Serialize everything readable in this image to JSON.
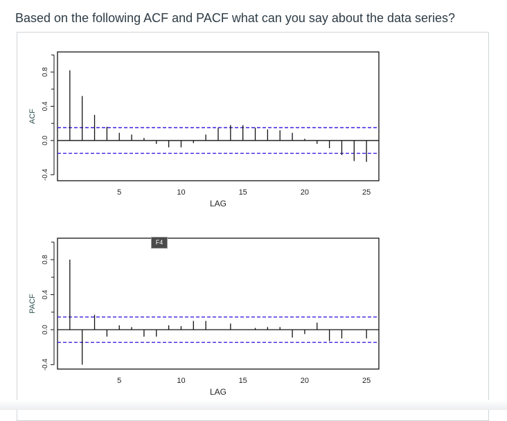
{
  "question": "Based on the following ACF and PACF what can you say about the data series?",
  "tooltip": "F4",
  "chart_data": [
    {
      "type": "bar",
      "ylabel": "ACF",
      "xlabel": "LAG",
      "x": [
        1,
        2,
        3,
        4,
        5,
        6,
        7,
        8,
        9,
        10,
        11,
        12,
        13,
        14,
        15,
        16,
        17,
        18,
        19,
        20,
        21,
        22,
        23,
        24,
        25
      ],
      "values": [
        0.82,
        0.52,
        0.3,
        0.16,
        0.09,
        0.07,
        0.03,
        -0.04,
        -0.08,
        -0.08,
        -0.03,
        0.07,
        0.15,
        0.18,
        0.18,
        0.15,
        0.13,
        0.12,
        0.09,
        0.02,
        -0.04,
        -0.09,
        -0.17,
        -0.24,
        -0.25
      ],
      "confidence_band": 0.15,
      "xticks": [
        "5",
        "10",
        "15",
        "20",
        "25"
      ],
      "yticks": [
        "-0.4",
        "0.0",
        "0.4",
        "0.8"
      ],
      "ylim": [
        -0.47,
        1.035
      ],
      "xlim": [
        0,
        26
      ]
    },
    {
      "type": "bar",
      "ylabel": "PACF",
      "xlabel": "LAG",
      "x": [
        1,
        2,
        3,
        4,
        5,
        6,
        7,
        8,
        9,
        10,
        11,
        12,
        13,
        14,
        15,
        16,
        17,
        18,
        19,
        20,
        21,
        22,
        23,
        24,
        25
      ],
      "values": [
        0.8,
        -0.4,
        0.17,
        -0.08,
        0.05,
        0.03,
        -0.08,
        -0.08,
        0.05,
        0.04,
        0.1,
        0.1,
        0.0,
        0.07,
        0.0,
        0.02,
        0.03,
        0.03,
        -0.09,
        -0.05,
        0.08,
        -0.13,
        -0.1,
        0.0,
        -0.1
      ],
      "confidence_band": 0.145,
      "xticks": [
        "5",
        "10",
        "15",
        "20",
        "25"
      ],
      "yticks": [
        "-0.4",
        "0.0",
        "0.4",
        "0.8"
      ],
      "ylim": [
        -0.45,
        1.045
      ],
      "xlim": [
        0,
        26
      ]
    }
  ]
}
